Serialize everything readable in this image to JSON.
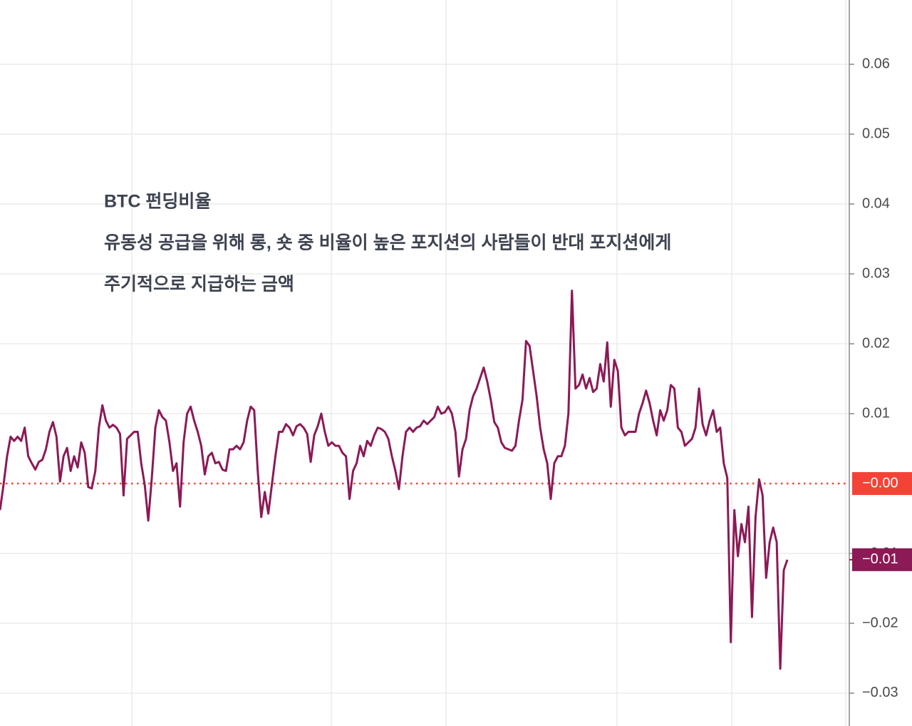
{
  "chart_data": {
    "type": "line",
    "title": "BTC 펀딩비율",
    "annotations": [
      "유동성 공급을 위해 롱, 숏 중 비율이 높은 포지션의 사람들이 반대 포지션에게",
      "주기적으로 지급하는 금액"
    ],
    "series": [
      {
        "color": "#8b1a56",
        "last_value_label": "−0.01",
        "values": [
          -0.0038,
          -0.0002,
          0.0039,
          0.0067,
          0.0061,
          0.0067,
          0.0061,
          0.008,
          0.0039,
          0.0029,
          0.002,
          0.0031,
          0.0034,
          0.0049,
          0.0074,
          0.0088,
          0.0067,
          0.0003,
          0.0039,
          0.0051,
          0.0018,
          0.0039,
          0.0023,
          0.0059,
          0.0044,
          -0.0005,
          -0.0007,
          0.0018,
          0.008,
          0.0112,
          0.009,
          0.008,
          0.0084,
          0.008,
          0.0071,
          -0.0017,
          0.0064,
          0.0069,
          0.0074,
          0.0074,
          0.0029,
          -0.0002,
          -0.0053,
          0.0008,
          0.008,
          0.0105,
          0.0095,
          0.009,
          0.0059,
          0.0018,
          0.0029,
          -0.0033,
          0.0059,
          0.01,
          0.011,
          0.009,
          0.0074,
          0.0054,
          0.0013,
          0.0039,
          0.0044,
          0.0029,
          0.0031,
          0.002,
          0.0018,
          0.0049,
          0.0049,
          0.0054,
          0.0049,
          0.0059,
          0.009,
          0.011,
          0.0105,
          0.0018,
          -0.0048,
          -0.0012,
          -0.0043,
          -0.0002,
          0.0039,
          0.0074,
          0.0074,
          0.0085,
          0.008,
          0.0069,
          0.0082,
          0.0085,
          0.008,
          0.0071,
          0.0031,
          0.0069,
          0.0082,
          0.01,
          0.0074,
          0.0054,
          0.0059,
          0.0054,
          0.0054,
          0.0044,
          0.0039,
          -0.0022,
          0.0018,
          0.0029,
          0.0054,
          0.0039,
          0.0061,
          0.0054,
          0.0069,
          0.008,
          0.0078,
          0.0074,
          0.0064,
          0.0039,
          0.0018,
          -0.0008,
          0.0039,
          0.0074,
          0.008,
          0.0074,
          0.008,
          0.0082,
          0.009,
          0.0085,
          0.009,
          0.0095,
          0.011,
          0.01,
          0.0102,
          0.011,
          0.01,
          0.0074,
          0.001,
          0.0049,
          0.0064,
          0.0105,
          0.0125,
          0.0136,
          0.0151,
          0.0166,
          0.0146,
          0.012,
          0.0088,
          0.008,
          0.0059,
          0.0051,
          0.0049,
          0.0047,
          0.0054,
          0.009,
          0.012,
          0.0204,
          0.0197,
          0.0161,
          0.0125,
          0.008,
          0.0049,
          0.0029,
          -0.0022,
          0.0029,
          0.0039,
          0.0039,
          0.0054,
          0.01,
          0.0276,
          0.0136,
          0.0141,
          0.0156,
          0.0136,
          0.0151,
          0.0131,
          0.0136,
          0.0171,
          0.0146,
          0.0202,
          0.011,
          0.0177,
          0.0161,
          0.008,
          0.0069,
          0.0074,
          0.0074,
          0.0074,
          0.01,
          0.0115,
          0.0133,
          0.0115,
          0.009,
          0.0069,
          0.0105,
          0.009,
          0.0105,
          0.0141,
          0.0136,
          0.008,
          0.0074,
          0.0054,
          0.0059,
          0.0064,
          0.008,
          0.0136,
          0.0085,
          0.0069,
          0.009,
          0.0105,
          0.0074,
          0.008,
          0.0029,
          0.0008,
          -0.0227,
          -0.0038,
          -0.0104,
          -0.0058,
          -0.0084,
          -0.0033,
          -0.0191,
          -0.0048,
          0.0006,
          -0.0017,
          -0.0135,
          -0.0084,
          -0.0063,
          -0.0084,
          -0.0265,
          -0.0124,
          -0.0109
        ]
      }
    ],
    "reference_line": {
      "value": 0,
      "label": "−0.00",
      "color": "#f44336"
    },
    "ylim": [
      -0.0347,
      0.0692
    ],
    "yticks": [
      0.06,
      0.05,
      0.04,
      0.03,
      0.02,
      0.01,
      {
        "value": -0.01,
        "label": "−0.01"
      },
      {
        "value": -0.02,
        "label": "−0.02"
      },
      {
        "value": -0.03,
        "label": "−0.03"
      }
    ],
    "grid": true
  }
}
